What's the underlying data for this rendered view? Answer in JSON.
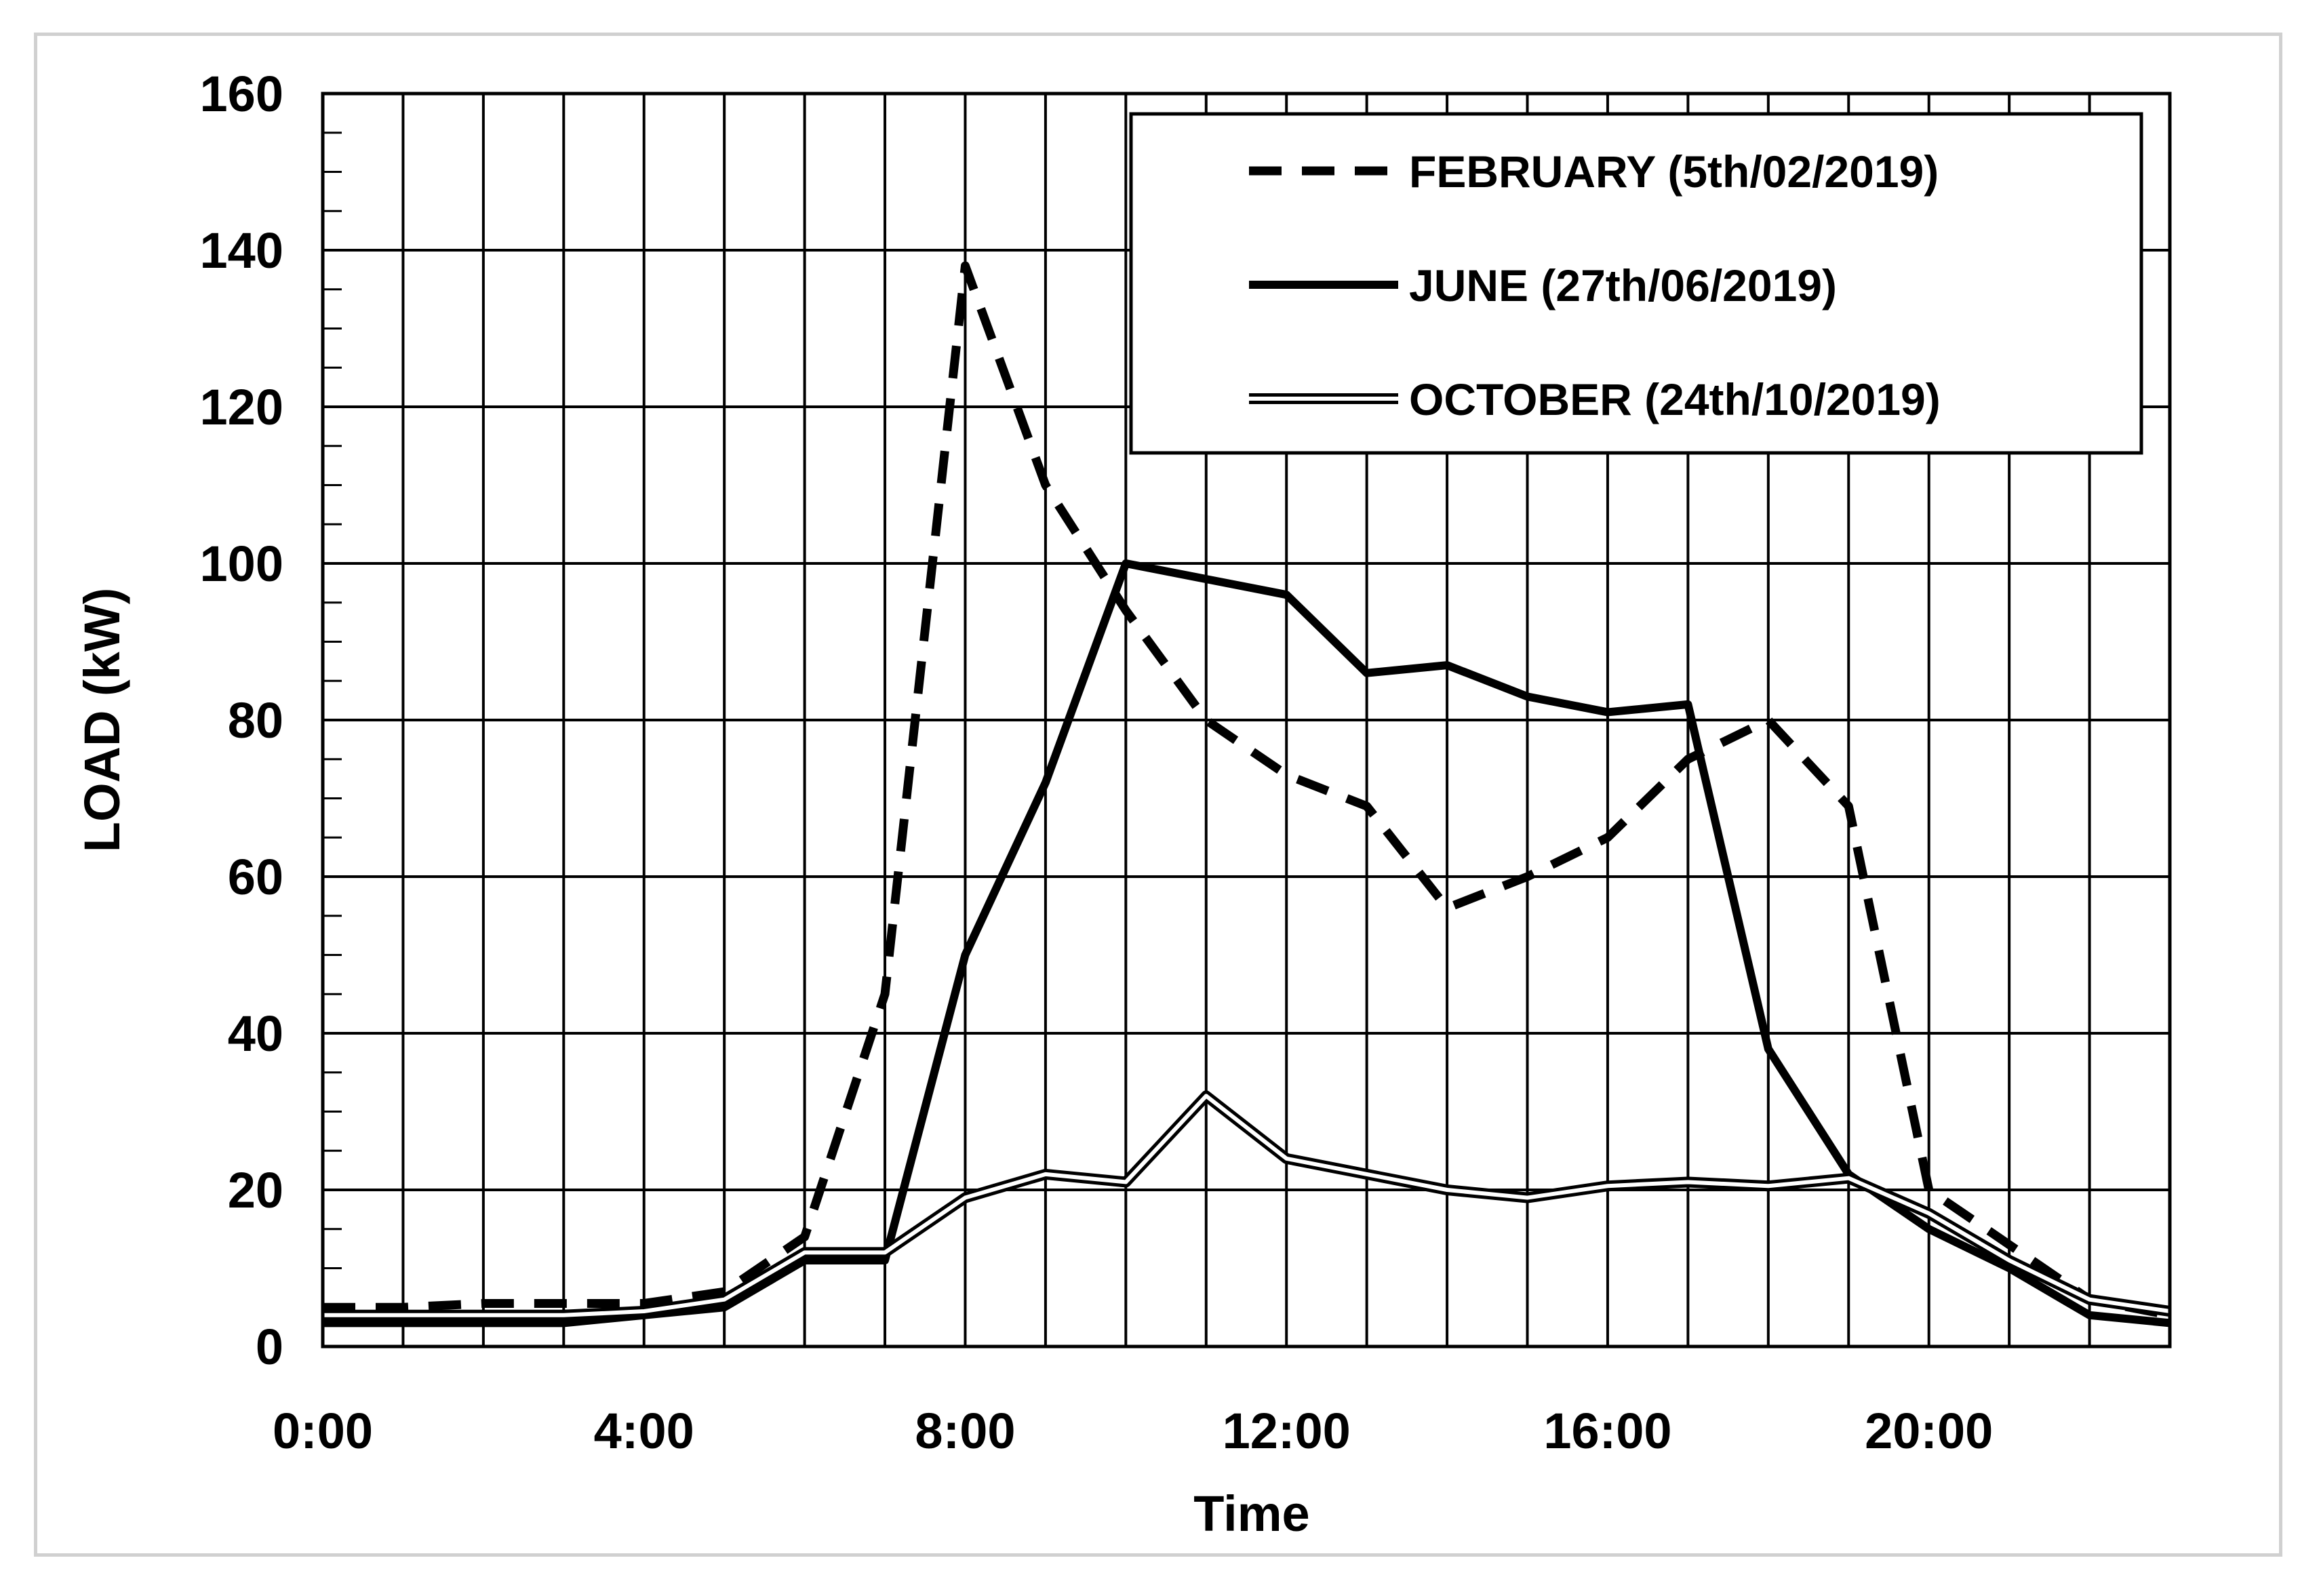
{
  "chart_data": {
    "type": "line",
    "title": "",
    "xlabel": "Time",
    "ylabel": "LOAD (kW)",
    "x": [
      0,
      1,
      2,
      3,
      4,
      5,
      6,
      7,
      8,
      9,
      10,
      11,
      12,
      13,
      14,
      15,
      16,
      17,
      18,
      19,
      20,
      21,
      22,
      23
    ],
    "xlim": [
      0,
      23
    ],
    "ylim": [
      0,
      160
    ],
    "x_tick_values": [
      0,
      4,
      8,
      12,
      16,
      20
    ],
    "x_tick_labels": [
      "0:00",
      "4:00",
      "8:00",
      "12:00",
      "16:00",
      "20:00"
    ],
    "y_tick_values": [
      0,
      20,
      40,
      60,
      80,
      100,
      120,
      140,
      160
    ],
    "y_tick_labels": [
      "0",
      "20",
      "40",
      "60",
      "80",
      "100",
      "120",
      "140",
      "160"
    ],
    "grid": true,
    "legend_position": "top-right",
    "series": [
      {
        "name": "FEBRUARY (5th/02/2019)",
        "style": "dashed",
        "color": "#000000",
        "values": [
          5,
          5,
          5.5,
          5.5,
          5.5,
          7,
          14,
          45,
          138,
          110,
          94,
          80,
          73,
          69,
          56,
          60,
          65,
          75,
          80,
          69,
          20,
          13,
          6,
          4
        ]
      },
      {
        "name": "JUNE (27th/06/2019)",
        "style": "solid",
        "color": "#000000",
        "values": [
          3,
          3,
          3,
          3,
          4,
          5,
          11,
          11,
          50,
          72,
          100,
          98,
          96,
          86,
          87,
          83,
          81,
          82,
          38,
          22,
          15,
          10,
          4,
          3
        ]
      },
      {
        "name": "OCTOBER (24th/10/2019)",
        "style": "double",
        "color": "#000000",
        "values": [
          4,
          4,
          4,
          4,
          4.5,
          6,
          12,
          12,
          19,
          22,
          21,
          32,
          24,
          22,
          20,
          19,
          20.5,
          21,
          20.5,
          21.5,
          17,
          11,
          6,
          4.5
        ]
      }
    ]
  }
}
